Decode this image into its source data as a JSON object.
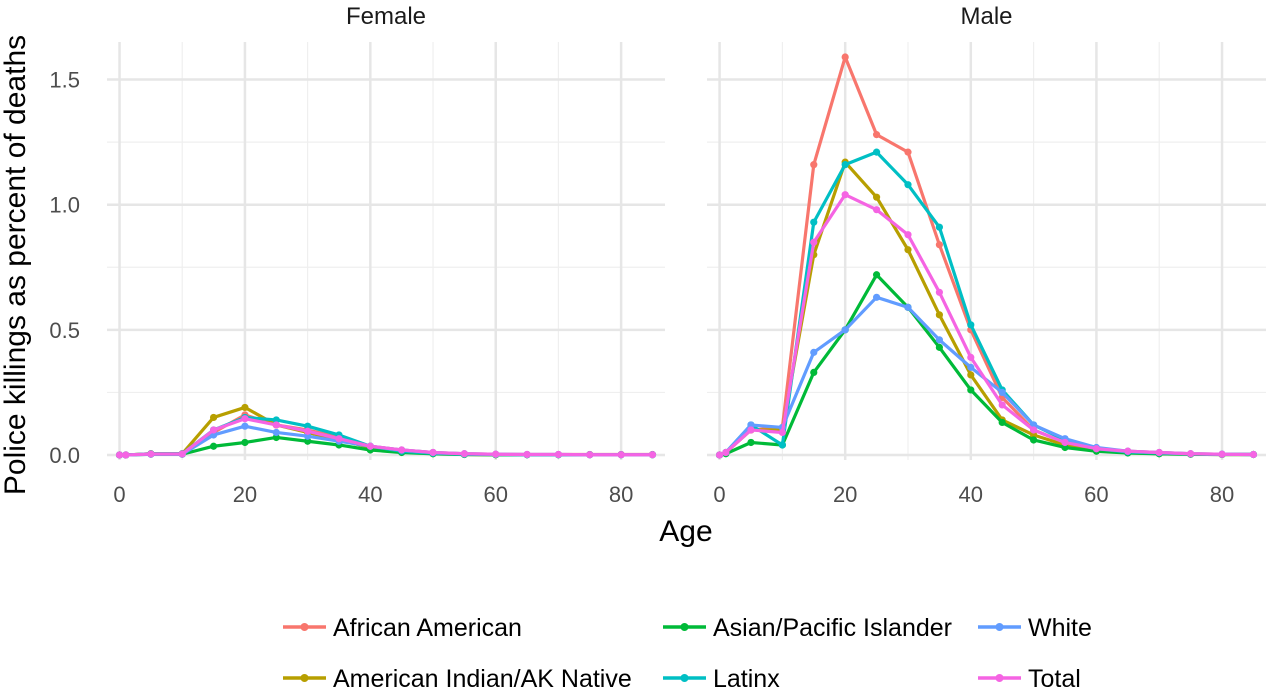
{
  "chart_data": {
    "type": "line",
    "xlabel": "Age",
    "ylabel": "Police killings as percent of deaths",
    "xlim": [
      -2,
      87
    ],
    "ylim": [
      -0.02,
      1.65
    ],
    "x_ticks": [
      0,
      20,
      40,
      60,
      80
    ],
    "y_ticks": [
      0.0,
      0.5,
      1.0,
      1.5
    ],
    "x_tick_labels": [
      "0",
      "20",
      "40",
      "60",
      "80"
    ],
    "y_tick_labels": [
      "0.0",
      "0.5",
      "1.0",
      "1.5"
    ],
    "grid": true,
    "legend_position": "bottom",
    "x": [
      0,
      1,
      5,
      10,
      15,
      20,
      25,
      30,
      35,
      40,
      45,
      50,
      55,
      60,
      65,
      70,
      75,
      80,
      85
    ],
    "panels": [
      {
        "title": "Female",
        "series": [
          {
            "name": "African American",
            "color": "#F8766D",
            "values": [
              0,
              0,
              0.005,
              0.005,
              0.09,
              0.16,
              0.12,
              0.1,
              0.07,
              0.035,
              0.02,
              0.01,
              0.005,
              0.003,
              0.002,
              0.002,
              0.002,
              0.002,
              0.002
            ]
          },
          {
            "name": "American Indian/AK Native",
            "color": "#B79F00",
            "values": [
              0,
              0,
              0.005,
              0.005,
              0.15,
              0.19,
              0.12,
              0.09,
              0.06,
              0.03,
              0.015,
              0.005,
              0.002,
              0.001,
              0.001,
              0.001,
              0.001,
              0.001,
              0.001
            ]
          },
          {
            "name": "Asian/Pacific Islander",
            "color": "#00BA38",
            "values": [
              0,
              0,
              0.003,
              0.003,
              0.035,
              0.05,
              0.07,
              0.055,
              0.04,
              0.02,
              0.01,
              0.005,
              0.002,
              0.001,
              0.001,
              0.001,
              0.001,
              0.001,
              0.001
            ]
          },
          {
            "name": "Latinx",
            "color": "#00BFC4",
            "values": [
              0,
              0,
              0.005,
              0.005,
              0.1,
              0.15,
              0.14,
              0.115,
              0.08,
              0.035,
              0.015,
              0.007,
              0.003,
              0.002,
              0.001,
              0.001,
              0.001,
              0.001,
              0.001
            ]
          },
          {
            "name": "White",
            "color": "#619CFF",
            "values": [
              0,
              0,
              0.003,
              0.003,
              0.08,
              0.115,
              0.09,
              0.075,
              0.055,
              0.035,
              0.02,
              0.01,
              0.005,
              0.003,
              0.002,
              0.002,
              0.001,
              0.001,
              0.001
            ]
          },
          {
            "name": "Total",
            "color": "#F564E3",
            "values": [
              0,
              0,
              0.004,
              0.004,
              0.1,
              0.145,
              0.12,
              0.095,
              0.065,
              0.035,
              0.02,
              0.01,
              0.005,
              0.003,
              0.002,
              0.002,
              0.001,
              0.001,
              0.001
            ]
          }
        ]
      },
      {
        "title": "Male",
        "series": [
          {
            "name": "African American",
            "color": "#F8766D",
            "values": [
              0,
              0.01,
              0.1,
              0.11,
              1.16,
              1.59,
              1.28,
              1.21,
              0.84,
              0.5,
              0.23,
              0.1,
              0.05,
              0.025,
              0.015,
              0.01,
              0.005,
              0.003,
              0.002
            ]
          },
          {
            "name": "American Indian/AK Native",
            "color": "#B79F00",
            "values": [
              0,
              0.01,
              0.1,
              0.1,
              0.8,
              1.17,
              1.03,
              0.82,
              0.56,
              0.32,
              0.14,
              0.08,
              0.04,
              0.02,
              0.01,
              0.005,
              0.003,
              0.002,
              0.002
            ]
          },
          {
            "name": "Asian/Pacific Islander",
            "color": "#00BA38",
            "values": [
              0,
              0.005,
              0.05,
              0.04,
              0.33,
              0.5,
              0.72,
              0.59,
              0.43,
              0.26,
              0.13,
              0.06,
              0.03,
              0.015,
              0.008,
              0.005,
              0.003,
              0.002,
              0.002
            ]
          },
          {
            "name": "Latinx",
            "color": "#00BFC4",
            "values": [
              0,
              0.01,
              0.12,
              0.04,
              0.93,
              1.16,
              1.21,
              1.08,
              0.91,
              0.52,
              0.26,
              0.12,
              0.06,
              0.025,
              0.012,
              0.008,
              0.004,
              0.003,
              0.002
            ]
          },
          {
            "name": "White",
            "color": "#619CFF",
            "values": [
              0,
              0.01,
              0.12,
              0.11,
              0.41,
              0.5,
              0.63,
              0.59,
              0.46,
              0.35,
              0.25,
              0.12,
              0.065,
              0.03,
              0.015,
              0.01,
              0.005,
              0.003,
              0.002
            ]
          },
          {
            "name": "Total",
            "color": "#F564E3",
            "values": [
              0,
              0.01,
              0.1,
              0.09,
              0.85,
              1.04,
              0.98,
              0.88,
              0.65,
              0.39,
              0.2,
              0.1,
              0.05,
              0.025,
              0.015,
              0.01,
              0.005,
              0.003,
              0.002
            ]
          }
        ]
      }
    ],
    "legend": [
      {
        "label": "African American",
        "color": "#F8766D"
      },
      {
        "label": "Asian/Pacific Islander",
        "color": "#00BA38"
      },
      {
        "label": "White",
        "color": "#619CFF"
      },
      {
        "label": "American Indian/AK Native",
        "color": "#B79F00"
      },
      {
        "label": "Latinx",
        "color": "#00BFC4"
      },
      {
        "label": "Total",
        "color": "#F564E3"
      }
    ]
  }
}
